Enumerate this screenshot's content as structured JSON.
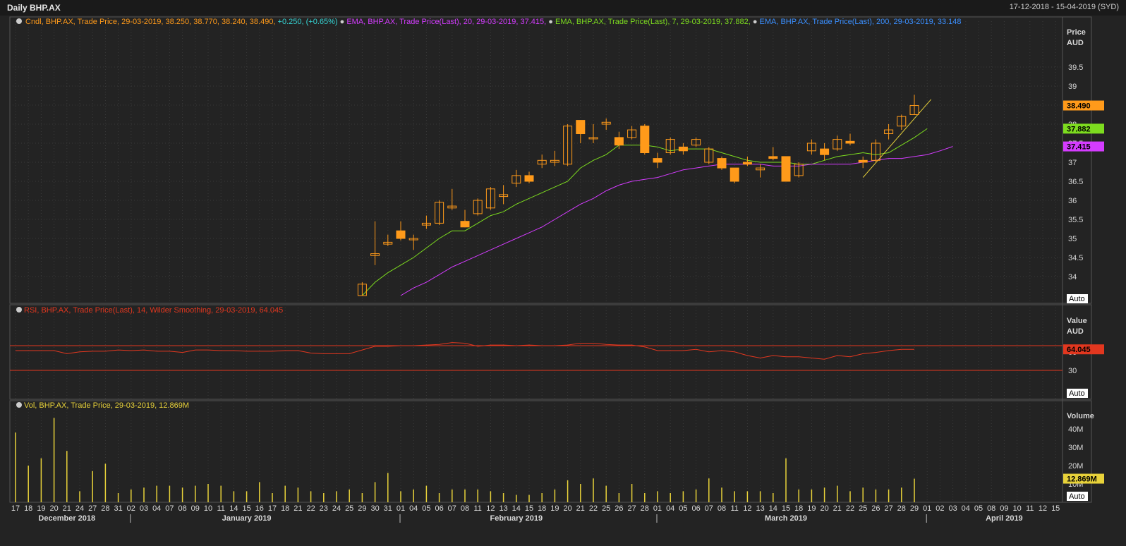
{
  "window": {
    "title": "Daily BHP.AX",
    "date_range": "17-12-2018 - 15-04-2019 (SYD)"
  },
  "colors": {
    "background": "#232323",
    "grid": "#3a3a3a",
    "candle": "#ff9a1a",
    "ema20": "#d43cff",
    "ema7": "#7ddc1f",
    "ema200": "#3a8fff",
    "rsi": "#e2371f",
    "volume": "#e8d23a",
    "text": "#d8d8d8",
    "trendline": "#e8d23a"
  },
  "price_panel": {
    "legend": [
      {
        "text": "Cndl, BHP.AX, Trade Price, 29-03-2019, 38.250, 38.770, 38.240, 38.490,",
        "color": "#ff9a1a"
      },
      {
        "text": "+0.250, (+0.65%)",
        "color": "#35d6d6"
      },
      {
        "text": "EMA, BHP.AX, Trade Price(Last),  20, 29-03-2019, 37.415,",
        "color": "#d43cff"
      },
      {
        "text": "EMA, BHP.AX, Trade Price(Last),  7, 29-03-2019, 37.882,",
        "color": "#7ddc1f"
      },
      {
        "text": "EMA, BHP.AX, Trade Price(Last),  200, 29-03-2019, 33.148",
        "color": "#3a8fff"
      }
    ],
    "axis_title": [
      "Price",
      "AUD"
    ],
    "ticks": [
      "39.5",
      "39",
      "38.5",
      "38",
      "37.5",
      "37",
      "36.5",
      "36",
      "35.5",
      "35",
      "34.5",
      "34"
    ],
    "tick_values": [
      39.5,
      39,
      38.5,
      38,
      37.5,
      37,
      36.5,
      36,
      35.5,
      35,
      34.5,
      34
    ],
    "badges": [
      {
        "label": "38.490",
        "value": 38.49,
        "color": "#ff9a1a"
      },
      {
        "label": "37.882",
        "value": 37.882,
        "color": "#7ddc1f"
      },
      {
        "label": "37.415",
        "value": 37.415,
        "color": "#d43cff"
      }
    ],
    "auto_label": "Auto"
  },
  "rsi_panel": {
    "legend": "RSI, BHP.AX, Trade Price(Last),  14, Wilder Smoothing,  29-03-2019, 64.045",
    "axis_title": [
      "Value",
      "AUD"
    ],
    "ticks": [
      "60",
      "30"
    ],
    "tick_values": [
      60,
      30
    ],
    "bands": [
      70,
      30
    ],
    "badge": {
      "label": "64.045",
      "value": 64.045
    },
    "auto_label": "Auto"
  },
  "volume_panel": {
    "legend": "Vol, BHP.AX, Trade Price, 29-03-2019, 12.869M",
    "axis_title": "Volume",
    "ticks": [
      "40M",
      "30M",
      "20M",
      "10M"
    ],
    "tick_values": [
      40,
      30,
      20,
      10
    ],
    "badge": {
      "label": "12.869M",
      "value": 12.869
    },
    "auto_label": "Auto"
  },
  "x_axis": {
    "days": [
      "17",
      "18",
      "19",
      "20",
      "21",
      "24",
      "27",
      "28",
      "31",
      "02",
      "03",
      "04",
      "07",
      "08",
      "09",
      "10",
      "11",
      "14",
      "15",
      "16",
      "17",
      "18",
      "21",
      "22",
      "23",
      "24",
      "25",
      "29",
      "30",
      "31",
      "01",
      "04",
      "05",
      "06",
      "07",
      "08",
      "11",
      "12",
      "13",
      "14",
      "15",
      "18",
      "19",
      "20",
      "21",
      "22",
      "25",
      "26",
      "27",
      "28",
      "01",
      "04",
      "05",
      "06",
      "07",
      "08",
      "11",
      "12",
      "13",
      "14",
      "15",
      "18",
      "19",
      "20",
      "21",
      "22",
      "25",
      "26",
      "27",
      "28",
      "29",
      "01",
      "02",
      "03",
      "04",
      "05",
      "08",
      "09",
      "10",
      "11",
      "12",
      "15"
    ],
    "months": [
      {
        "label": "December 2018",
        "day_index": 4
      },
      {
        "label": "January 2019",
        "day_index": 18
      },
      {
        "label": "February 2019",
        "day_index": 39
      },
      {
        "label": "March 2019",
        "day_index": 60
      },
      {
        "label": "April 2019",
        "day_index": 77
      }
    ],
    "month_separators": [
      9,
      30,
      50,
      71
    ]
  },
  "chart_data": [
    {
      "type": "candlestick",
      "title": "Daily BHP.AX",
      "ylabel": "Price AUD",
      "ylim": [
        33.5,
        40.0
      ],
      "x_start": 0,
      "candles": [
        {
          "i": 27,
          "o": 33.5,
          "h": 33.85,
          "l": 33.5,
          "c": 33.8
        },
        {
          "i": 28,
          "o": 34.55,
          "h": 35.45,
          "l": 34.3,
          "c": 34.6
        },
        {
          "i": 29,
          "o": 34.85,
          "h": 35.1,
          "l": 34.8,
          "c": 34.9
        },
        {
          "i": 30,
          "o": 35.2,
          "h": 35.45,
          "l": 34.95,
          "c": 35.0
        },
        {
          "i": 31,
          "o": 35.0,
          "h": 35.1,
          "l": 34.7,
          "c": 35.0
        },
        {
          "i": 32,
          "o": 35.35,
          "h": 35.6,
          "l": 35.25,
          "c": 35.4
        },
        {
          "i": 33,
          "o": 35.4,
          "h": 36.0,
          "l": 35.35,
          "c": 35.95
        },
        {
          "i": 34,
          "o": 35.8,
          "h": 36.3,
          "l": 35.75,
          "c": 35.85
        },
        {
          "i": 35,
          "o": 35.45,
          "h": 35.75,
          "l": 35.3,
          "c": 35.3
        },
        {
          "i": 36,
          "o": 35.65,
          "h": 36.05,
          "l": 35.6,
          "c": 36.0
        },
        {
          "i": 37,
          "o": 35.8,
          "h": 36.35,
          "l": 35.75,
          "c": 36.3
        },
        {
          "i": 38,
          "o": 36.1,
          "h": 36.4,
          "l": 35.9,
          "c": 36.15
        },
        {
          "i": 39,
          "o": 36.45,
          "h": 36.8,
          "l": 36.35,
          "c": 36.65
        },
        {
          "i": 40,
          "o": 36.65,
          "h": 36.75,
          "l": 36.45,
          "c": 36.5
        },
        {
          "i": 41,
          "o": 36.95,
          "h": 37.2,
          "l": 36.85,
          "c": 37.05
        },
        {
          "i": 42,
          "o": 37.0,
          "h": 37.3,
          "l": 36.9,
          "c": 37.05
        },
        {
          "i": 43,
          "o": 36.95,
          "h": 38.0,
          "l": 36.9,
          "c": 37.95
        },
        {
          "i": 44,
          "o": 38.1,
          "h": 38.05,
          "l": 37.5,
          "c": 37.75
        },
        {
          "i": 45,
          "o": 37.65,
          "h": 38.0,
          "l": 37.5,
          "c": 37.65
        },
        {
          "i": 46,
          "o": 38.0,
          "h": 38.15,
          "l": 37.85,
          "c": 38.05
        },
        {
          "i": 47,
          "o": 37.65,
          "h": 37.8,
          "l": 37.35,
          "c": 37.45
        },
        {
          "i": 48,
          "o": 37.65,
          "h": 37.95,
          "l": 37.6,
          "c": 37.85
        },
        {
          "i": 49,
          "o": 37.95,
          "h": 38.0,
          "l": 37.2,
          "c": 37.25
        },
        {
          "i": 50,
          "o": 37.1,
          "h": 37.25,
          "l": 36.85,
          "c": 37.0
        },
        {
          "i": 51,
          "o": 37.25,
          "h": 37.65,
          "l": 37.2,
          "c": 37.6
        },
        {
          "i": 52,
          "o": 37.4,
          "h": 37.5,
          "l": 37.2,
          "c": 37.3
        },
        {
          "i": 53,
          "o": 37.45,
          "h": 37.65,
          "l": 37.4,
          "c": 37.6
        },
        {
          "i": 54,
          "o": 37.0,
          "h": 37.4,
          "l": 36.95,
          "c": 37.35
        },
        {
          "i": 55,
          "o": 37.1,
          "h": 37.15,
          "l": 36.8,
          "c": 36.85
        },
        {
          "i": 56,
          "o": 36.85,
          "h": 36.85,
          "l": 36.45,
          "c": 36.5
        },
        {
          "i": 57,
          "o": 37.0,
          "h": 37.15,
          "l": 36.9,
          "c": 36.95
        },
        {
          "i": 58,
          "o": 36.8,
          "h": 36.95,
          "l": 36.6,
          "c": 36.85
        },
        {
          "i": 59,
          "o": 37.15,
          "h": 37.4,
          "l": 37.05,
          "c": 37.1
        },
        {
          "i": 60,
          "o": 37.15,
          "h": 37.15,
          "l": 36.5,
          "c": 36.5
        },
        {
          "i": 61,
          "o": 36.65,
          "h": 37.0,
          "l": 36.6,
          "c": 36.95
        },
        {
          "i": 62,
          "o": 37.3,
          "h": 37.6,
          "l": 37.2,
          "c": 37.5
        },
        {
          "i": 63,
          "o": 37.35,
          "h": 37.5,
          "l": 37.05,
          "c": 37.2
        },
        {
          "i": 64,
          "o": 37.35,
          "h": 37.7,
          "l": 37.3,
          "c": 37.6
        },
        {
          "i": 65,
          "o": 37.55,
          "h": 37.75,
          "l": 37.45,
          "c": 37.5
        },
        {
          "i": 66,
          "o": 37.05,
          "h": 37.15,
          "l": 36.85,
          "c": 37.0
        },
        {
          "i": 67,
          "o": 37.05,
          "h": 37.6,
          "l": 37.0,
          "c": 37.5
        },
        {
          "i": 68,
          "o": 37.75,
          "h": 38.0,
          "l": 37.6,
          "c": 37.85
        },
        {
          "i": 69,
          "o": 37.95,
          "h": 38.25,
          "l": 37.85,
          "c": 38.2
        },
        {
          "i": 70,
          "o": 38.25,
          "h": 38.77,
          "l": 38.24,
          "c": 38.49
        }
      ],
      "series": [
        {
          "name": "EMA 7",
          "color": "#7ddc1f",
          "x_start": 27,
          "values": [
            33.5,
            33.85,
            34.1,
            34.3,
            34.5,
            34.75,
            35.0,
            35.2,
            35.2,
            35.4,
            35.6,
            35.7,
            35.9,
            36.05,
            36.2,
            36.35,
            36.5,
            36.85,
            37.05,
            37.2,
            37.45,
            37.45,
            37.45,
            37.4,
            37.3,
            37.35,
            37.35,
            37.35,
            37.25,
            37.15,
            37.05,
            37.0,
            37.0,
            37.0,
            36.95,
            36.95,
            37.05,
            37.15,
            37.2,
            37.25,
            37.2,
            37.25,
            37.45,
            37.65,
            37.882
          ]
        },
        {
          "name": "EMA 20",
          "color": "#d43cff",
          "x_start": 30,
          "values": [
            33.5,
            33.7,
            33.85,
            34.05,
            34.25,
            34.4,
            34.55,
            34.7,
            34.85,
            35.0,
            35.15,
            35.3,
            35.5,
            35.7,
            35.9,
            36.05,
            36.25,
            36.4,
            36.5,
            36.55,
            36.6,
            36.7,
            36.8,
            36.85,
            36.9,
            36.95,
            36.95,
            36.95,
            36.95,
            36.9,
            36.9,
            36.9,
            36.95,
            36.95,
            36.95,
            36.95,
            37.0,
            37.05,
            37.1,
            37.1,
            37.15,
            37.2,
            37.3,
            37.415
          ]
        }
      ],
      "trendline": {
        "x0": 66,
        "y0": 36.6,
        "x1": 71.3,
        "y1": 38.65
      }
    },
    {
      "type": "line",
      "title": "RSI",
      "ylim": [
        15,
        85
      ],
      "bands": [
        70,
        30
      ],
      "x_start": 0,
      "series": [
        {
          "name": "RSI 14",
          "values": [
            62,
            62,
            62,
            62,
            57,
            60,
            61,
            61,
            63,
            62,
            63,
            61,
            61,
            59,
            63,
            63,
            62,
            62,
            61,
            61,
            61,
            62,
            62,
            58,
            57,
            57,
            57,
            63,
            69,
            69,
            70,
            70,
            71,
            72,
            75,
            74,
            69,
            71,
            71,
            70,
            71,
            70,
            70,
            71,
            74,
            74,
            72,
            71,
            71,
            68,
            62,
            62,
            62,
            64,
            60,
            62,
            60,
            54,
            50,
            54,
            52,
            52,
            50,
            48,
            54,
            52,
            57,
            59,
            62,
            64,
            64.045
          ]
        }
      ]
    },
    {
      "type": "bar",
      "title": "Volume",
      "ylabel": "Volume",
      "ylim": [
        0,
        47
      ],
      "x_start": 0,
      "values": [
        38,
        20,
        24,
        46,
        28,
        6,
        17,
        21,
        5,
        7,
        8,
        9,
        9,
        8,
        9,
        10,
        9,
        6,
        6,
        11,
        5,
        9,
        8,
        6,
        5,
        6,
        7,
        5,
        11,
        16,
        6,
        7,
        9,
        5,
        7,
        7,
        7,
        6,
        5,
        4,
        4,
        5,
        7,
        12,
        10,
        13,
        9,
        5,
        10,
        5,
        6,
        5,
        6,
        7,
        13,
        8,
        6,
        6,
        6,
        5,
        24,
        7,
        7,
        8,
        9,
        6,
        8,
        7,
        7,
        8,
        12.869
      ]
    }
  ]
}
